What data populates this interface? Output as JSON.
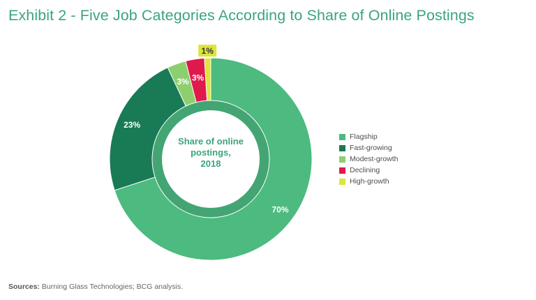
{
  "title": "Exhibit 2 - Five Job Categories According to Share of Online Postings",
  "chart_data": {
    "type": "pie",
    "subtype": "donut",
    "center_label": [
      "Share of online",
      "postings,",
      "2018"
    ],
    "slices": [
      {
        "name": "Flagship",
        "value": 70,
        "label": "70%",
        "color": "#4dba7f"
      },
      {
        "name": "Fast-growing",
        "value": 23,
        "label": "23%",
        "color": "#197a56"
      },
      {
        "name": "Modest-growth",
        "value": 3,
        "label": "3%",
        "color": "#8dcf6e"
      },
      {
        "name": "Declining",
        "value": 3,
        "label": "3%",
        "color": "#e0194d"
      },
      {
        "name": "High-growth",
        "value": 1,
        "label": "1%",
        "color": "#dde63a"
      }
    ],
    "legend_position": "right"
  },
  "source": {
    "label": "Sources:",
    "text": " Burning Glass Technologies; BCG analysis."
  }
}
